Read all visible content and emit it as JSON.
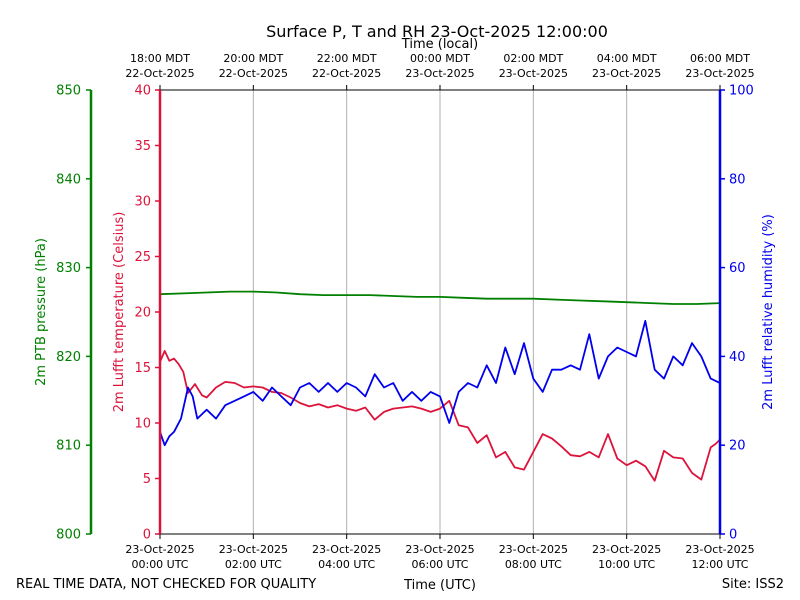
{
  "chart_data": {
    "type": "line",
    "title": "Surface P, T and RH 23-Oct-2025 12:00:00",
    "top_axis_label": "Time (local)",
    "xlabel": "Time (UTC)",
    "xlim": [
      0,
      12
    ],
    "grid": "vertical lines at top/bottom ticks",
    "bottom_ticks": [
      {
        "x": 0,
        "line1": "23-Oct-2025",
        "line2": "00:00 UTC"
      },
      {
        "x": 2,
        "line1": "23-Oct-2025",
        "line2": "02:00 UTC"
      },
      {
        "x": 4,
        "line1": "23-Oct-2025",
        "line2": "04:00 UTC"
      },
      {
        "x": 6,
        "line1": "23-Oct-2025",
        "line2": "06:00 UTC"
      },
      {
        "x": 8,
        "line1": "23-Oct-2025",
        "line2": "08:00 UTC"
      },
      {
        "x": 10,
        "line1": "23-Oct-2025",
        "line2": "10:00 UTC"
      },
      {
        "x": 12,
        "line1": "23-Oct-2025",
        "line2": "12:00 UTC"
      }
    ],
    "top_ticks": [
      {
        "x": 0,
        "line1": "18:00 MDT",
        "line2": "22-Oct-2025"
      },
      {
        "x": 2,
        "line1": "20:00 MDT",
        "line2": "22-Oct-2025"
      },
      {
        "x": 4,
        "line1": "22:00 MDT",
        "line2": "22-Oct-2025"
      },
      {
        "x": 6,
        "line1": "00:00 MDT",
        "line2": "23-Oct-2025"
      },
      {
        "x": 8,
        "line1": "02:00 MDT",
        "line2": "23-Oct-2025"
      },
      {
        "x": 10,
        "line1": "04:00 MDT",
        "line2": "23-Oct-2025"
      },
      {
        "x": 12,
        "line1": "06:00 MDT",
        "line2": "23-Oct-2025"
      }
    ],
    "axes": {
      "pressure": {
        "label": "2m PTB pressure (hPa)",
        "range": [
          800,
          850
        ],
        "ticks": [
          800,
          810,
          820,
          830,
          840,
          850
        ],
        "color": "#008000"
      },
      "temperature": {
        "label": "2m Lufft temperature (Celsius)",
        "range": [
          0,
          40
        ],
        "ticks": [
          0,
          5,
          10,
          15,
          20,
          25,
          30,
          35,
          40
        ],
        "color": "#dc143c"
      },
      "humidity": {
        "label": "2m Lufft relative humidity (%)",
        "range": [
          0,
          100
        ],
        "ticks": [
          0,
          20,
          40,
          60,
          80,
          100
        ],
        "color": "#0000ee"
      }
    },
    "series": [
      {
        "axis": "pressure",
        "color": "#008000",
        "x": [
          0,
          0.5,
          1,
          1.5,
          2,
          2.5,
          3,
          3.5,
          4,
          4.5,
          5,
          5.5,
          6,
          6.5,
          7,
          7.5,
          8,
          8.5,
          9,
          9.5,
          10,
          10.5,
          11,
          11.5,
          12
        ],
        "y": [
          827.0,
          827.1,
          827.2,
          827.3,
          827.3,
          827.2,
          827.0,
          826.9,
          826.9,
          826.9,
          826.8,
          826.7,
          826.7,
          826.6,
          826.5,
          826.5,
          826.5,
          826.4,
          826.3,
          826.2,
          826.1,
          826.0,
          825.9,
          825.9,
          826.0
        ]
      },
      {
        "axis": "temperature",
        "color": "#dc143c",
        "x": [
          0,
          0.1,
          0.2,
          0.3,
          0.4,
          0.5,
          0.6,
          0.75,
          0.9,
          1.0,
          1.2,
          1.4,
          1.6,
          1.8,
          2.0,
          2.2,
          2.4,
          2.6,
          2.8,
          3.0,
          3.2,
          3.4,
          3.6,
          3.8,
          4.0,
          4.2,
          4.4,
          4.6,
          4.8,
          5.0,
          5.2,
          5.4,
          5.6,
          5.8,
          6.0,
          6.2,
          6.4,
          6.6,
          6.8,
          7.0,
          7.2,
          7.4,
          7.6,
          7.8,
          8.0,
          8.2,
          8.4,
          8.6,
          8.8,
          9.0,
          9.2,
          9.4,
          9.6,
          9.8,
          10.0,
          10.2,
          10.4,
          10.6,
          10.8,
          11.0,
          11.2,
          11.4,
          11.6,
          11.8,
          11.9,
          12.0
        ],
        "y": [
          15.5,
          16.5,
          15.6,
          15.8,
          15.3,
          14.6,
          12.7,
          13.5,
          12.5,
          12.3,
          13.2,
          13.7,
          13.6,
          13.2,
          13.3,
          13.2,
          12.8,
          12.7,
          12.3,
          11.8,
          11.5,
          11.7,
          11.4,
          11.6,
          11.3,
          11.1,
          11.4,
          10.3,
          11.0,
          11.3,
          11.4,
          11.5,
          11.3,
          11.0,
          11.3,
          12.0,
          9.8,
          9.6,
          8.2,
          8.9,
          6.9,
          7.4,
          6.0,
          5.8,
          7.4,
          9.0,
          8.6,
          7.9,
          7.1,
          7.0,
          7.4,
          6.9,
          9.0,
          6.8,
          6.2,
          6.6,
          6.1,
          4.8,
          7.5,
          6.9,
          6.8,
          5.5,
          4.9,
          7.8,
          8.1,
          8.5
        ]
      },
      {
        "axis": "humidity",
        "color": "#0000ee",
        "x": [
          0,
          0.1,
          0.2,
          0.3,
          0.45,
          0.6,
          0.7,
          0.8,
          0.9,
          1.0,
          1.2,
          1.4,
          1.6,
          1.8,
          2.0,
          2.2,
          2.4,
          2.6,
          2.8,
          3.0,
          3.2,
          3.4,
          3.6,
          3.8,
          4.0,
          4.2,
          4.4,
          4.6,
          4.8,
          5.0,
          5.2,
          5.4,
          5.6,
          5.8,
          6.0,
          6.2,
          6.4,
          6.6,
          6.8,
          7.0,
          7.2,
          7.4,
          7.6,
          7.8,
          8.0,
          8.2,
          8.4,
          8.6,
          8.8,
          9.0,
          9.2,
          9.4,
          9.6,
          9.8,
          10.0,
          10.2,
          10.4,
          10.6,
          10.8,
          11.0,
          11.2,
          11.4,
          11.6,
          11.8,
          12.0
        ],
        "y": [
          23,
          20,
          22,
          23,
          26,
          33,
          31,
          26,
          27,
          28,
          26,
          29,
          30,
          31,
          32,
          30,
          33,
          31,
          29,
          33,
          34,
          32,
          34,
          32,
          34,
          33,
          31,
          36,
          33,
          34,
          30,
          32,
          30,
          32,
          31,
          25,
          32,
          34,
          33,
          38,
          34,
          42,
          36,
          43,
          35,
          32,
          37,
          37,
          38,
          37,
          45,
          35,
          40,
          42,
          41,
          40,
          48,
          37,
          35,
          40,
          38,
          43,
          40,
          35,
          34
        ]
      }
    ]
  },
  "footer": {
    "left_note": "REAL TIME DATA, NOT CHECKED FOR QUALITY",
    "site": "Site: ISS2"
  }
}
